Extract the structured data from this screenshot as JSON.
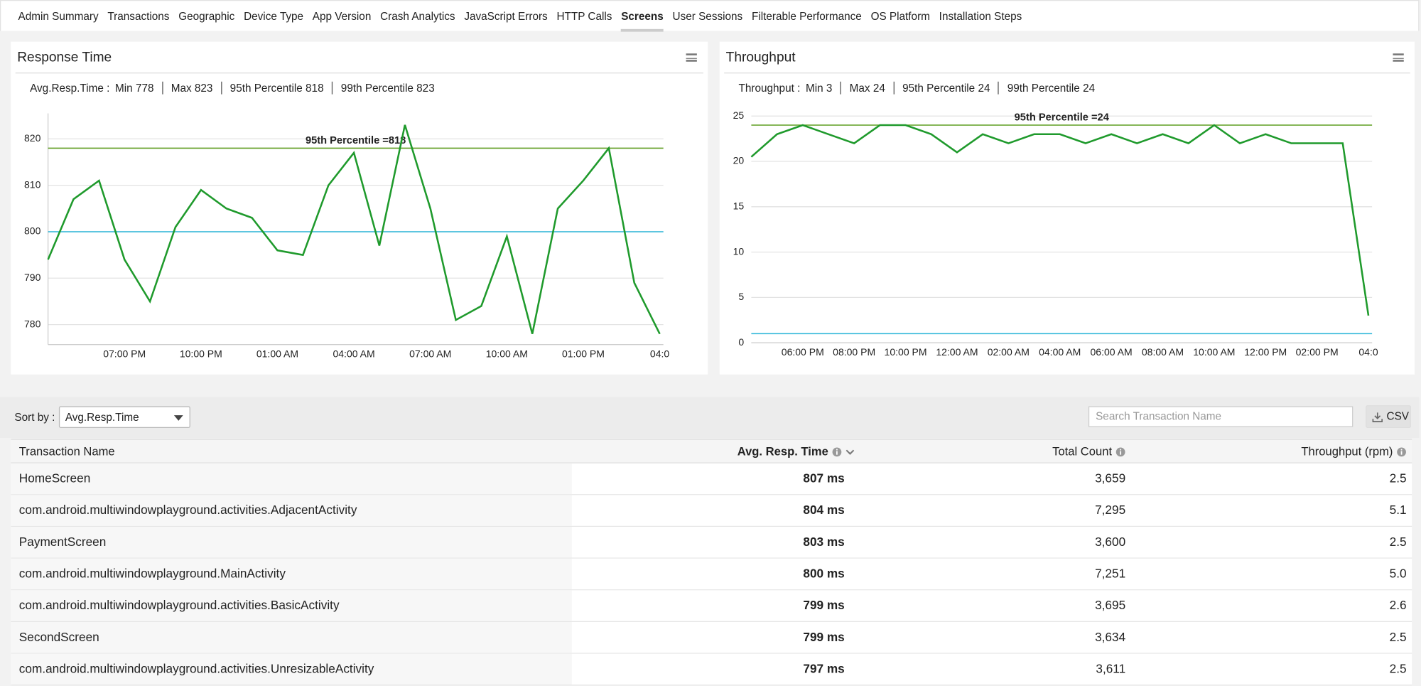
{
  "tabs": [
    "Admin Summary",
    "Transactions",
    "Geographic",
    "Device Type",
    "App Version",
    "Crash Analytics",
    "JavaScript Errors",
    "HTTP Calls",
    "Screens",
    "User Sessions",
    "Filterable Performance",
    "OS Platform",
    "Installation Steps"
  ],
  "active_tab": 8,
  "chart_data": [
    {
      "type": "line",
      "title": "Response Time",
      "stats_label": "Avg.Resp.Time :",
      "stats": [
        "Min 778",
        "Max 823",
        "95th Percentile 818",
        "99th Percentile 823"
      ],
      "categories": [
        null,
        null,
        null,
        "07:00 PM",
        null,
        null,
        "10:00 PM",
        null,
        null,
        "01:00 AM",
        null,
        null,
        "04:00 AM",
        null,
        null,
        "07:00 AM",
        null,
        null,
        "10:00 AM",
        null,
        null,
        "01:00 PM",
        null,
        null,
        "04:0"
      ],
      "values": [
        794,
        807,
        811,
        794,
        785,
        801,
        809,
        805,
        803,
        796,
        795,
        810,
        817,
        797,
        823,
        805,
        781,
        784,
        799,
        778,
        805,
        811,
        818,
        789,
        778
      ],
      "color": "#1f9a2c",
      "ylim": [
        775.7,
        825.5
      ],
      "yticks": [
        780,
        790,
        800,
        810,
        820
      ],
      "grid": true,
      "reference_lines": [
        {
          "value": 818,
          "label": "95th Percentile =818",
          "color": "#5f9e20"
        },
        {
          "value": 800,
          "color": "#2bb5d8"
        }
      ]
    },
    {
      "type": "line",
      "title": "Throughput",
      "stats_label": "Throughput :",
      "stats": [
        "Min 3",
        "Max 24",
        "95th Percentile 24",
        "99th Percentile 24"
      ],
      "categories": [
        null,
        null,
        "06:00 PM",
        null,
        "08:00 PM",
        null,
        "10:00 PM",
        null,
        "12:00 AM",
        null,
        "02:00 AM",
        null,
        "04:00 AM",
        null,
        "06:00 AM",
        null,
        "08:00 AM",
        null,
        "10:00 AM",
        null,
        "12:00 PM",
        null,
        "02:00 PM",
        null,
        "04:0"
      ],
      "values": [
        20.5,
        23,
        24,
        23,
        22,
        24,
        24,
        23,
        21,
        23,
        22,
        23,
        23,
        22,
        23,
        22,
        23,
        22,
        24,
        22,
        23,
        22,
        22,
        22,
        3
      ],
      "color": "#1f9a2c",
      "ylim": [
        0,
        25
      ],
      "yticks": [
        0,
        5,
        10,
        15,
        20,
        25
      ],
      "grid": true,
      "reference_lines": [
        {
          "value": 24,
          "label": "95th Percentile =24",
          "color": "#5f9e20"
        },
        {
          "value": 1,
          "color": "#2bb5d8"
        }
      ]
    }
  ],
  "toolbar": {
    "sort_label": "Sort by :",
    "sort_value": "Avg.Resp.Time",
    "search_placeholder": "Search Transaction Name",
    "export": "CSV"
  },
  "table": {
    "columns": [
      "Transaction Name",
      "Avg. Resp. Time",
      "Total Count",
      "Throughput (rpm)"
    ],
    "rows": [
      [
        "HomeScreen",
        "807 ms",
        "3,659",
        "2.5"
      ],
      [
        "com.android.multiwindowplayground.activities.AdjacentActivity",
        "804 ms",
        "7,295",
        "5.1"
      ],
      [
        "PaymentScreen",
        "803 ms",
        "3,600",
        "2.5"
      ],
      [
        "com.android.multiwindowplayground.MainActivity",
        "800 ms",
        "7,251",
        "5.0"
      ],
      [
        "com.android.multiwindowplayground.activities.BasicActivity",
        "799 ms",
        "3,695",
        "2.6"
      ],
      [
        "SecondScreen",
        "799 ms",
        "3,634",
        "2.5"
      ],
      [
        "com.android.multiwindowplayground.activities.UnresizableActivity",
        "797 ms",
        "3,611",
        "2.5"
      ]
    ]
  }
}
